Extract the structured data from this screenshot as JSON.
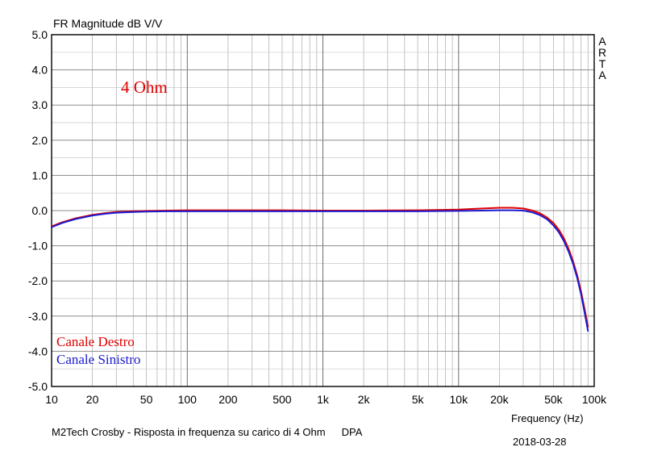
{
  "chart_data": {
    "type": "line",
    "title": "FR Magnitude dB V/V",
    "xlabel": "Frequency (Hz)",
    "ylabel": "",
    "x_scale": "log",
    "xlim": [
      10,
      100000
    ],
    "ylim": [
      -5,
      5
    ],
    "grid": true,
    "x_ticks": [
      "10",
      "20",
      "50",
      "100",
      "200",
      "500",
      "1k",
      "2k",
      "5k",
      "10k",
      "20k",
      "50k",
      "100k"
    ],
    "x_tick_values": [
      10,
      20,
      50,
      100,
      200,
      500,
      1000,
      2000,
      5000,
      10000,
      20000,
      50000,
      100000
    ],
    "y_ticks": [
      "5.0",
      "4.0",
      "3.0",
      "2.0",
      "1.0",
      "0.0",
      "-1.0",
      "-2.0",
      "-3.0",
      "-4.0",
      "-5.0"
    ],
    "y_tick_values": [
      5,
      4,
      3,
      2,
      1,
      0,
      -1,
      -2,
      -3,
      -4,
      -5
    ],
    "annotation": "4 Ohm",
    "watermark": "ARTA",
    "legend_position": "bottom-left",
    "series": [
      {
        "name": "Canale Destro",
        "color": "#e00000",
        "x": [
          10,
          12,
          15,
          20,
          25,
          30,
          40,
          50,
          70,
          100,
          200,
          500,
          1000,
          2000,
          5000,
          10000,
          15000,
          20000,
          25000,
          30000,
          35000,
          40000,
          45000,
          50000,
          55000,
          60000,
          65000,
          70000,
          75000,
          80000,
          85000,
          90000
        ],
        "values": [
          -0.45,
          -0.33,
          -0.22,
          -0.12,
          -0.07,
          -0.04,
          -0.02,
          -0.01,
          0.0,
          0.01,
          0.01,
          0.01,
          0.0,
          0.0,
          0.01,
          0.03,
          0.06,
          0.08,
          0.08,
          0.06,
          0.0,
          -0.08,
          -0.2,
          -0.35,
          -0.55,
          -0.8,
          -1.1,
          -1.45,
          -1.85,
          -2.3,
          -2.8,
          -3.3
        ]
      },
      {
        "name": "Canale Sinistro",
        "color": "#1a1ad0",
        "x": [
          10,
          12,
          15,
          20,
          25,
          30,
          40,
          50,
          70,
          100,
          200,
          500,
          1000,
          2000,
          5000,
          10000,
          15000,
          20000,
          25000,
          30000,
          35000,
          40000,
          45000,
          50000,
          55000,
          60000,
          65000,
          70000,
          75000,
          80000,
          85000,
          90000
        ],
        "values": [
          -0.47,
          -0.35,
          -0.24,
          -0.14,
          -0.09,
          -0.06,
          -0.04,
          -0.03,
          -0.02,
          -0.02,
          -0.02,
          -0.02,
          -0.02,
          -0.02,
          -0.02,
          -0.01,
          0.0,
          0.01,
          0.01,
          0.0,
          -0.05,
          -0.13,
          -0.25,
          -0.42,
          -0.62,
          -0.88,
          -1.18,
          -1.52,
          -1.92,
          -2.38,
          -2.9,
          -3.42
        ]
      }
    ]
  },
  "footer": {
    "caption": "M2Tech Crosby - Risposta in frequenza su carico di 4 Ohm",
    "tag": "DPA",
    "date": "2018-03-28"
  }
}
